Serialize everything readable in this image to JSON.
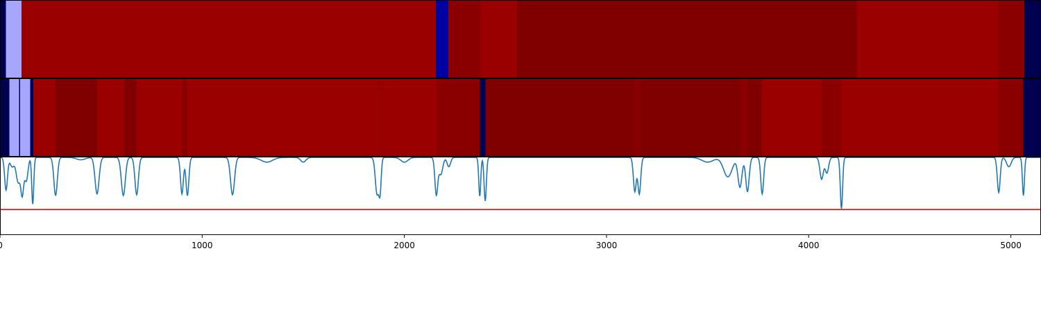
{
  "chart_data": [
    {
      "type": "heatmap",
      "xlim": [
        0,
        5149
      ],
      "segments": [
        {
          "start": 0,
          "end": 30,
          "color": "#000050"
        },
        {
          "start": 30,
          "end": 107,
          "color": "#a6a6ff"
        },
        {
          "start": 107,
          "end": 2156,
          "color": "#9a0000"
        },
        {
          "start": 2156,
          "end": 2218,
          "color": "#0000a0"
        },
        {
          "start": 2218,
          "end": 2375,
          "color": "#8a0000"
        },
        {
          "start": 2375,
          "end": 2557,
          "color": "#9a0000"
        },
        {
          "start": 2557,
          "end": 4237,
          "color": "#800000"
        },
        {
          "start": 4237,
          "end": 4938,
          "color": "#9a0000"
        },
        {
          "start": 4938,
          "end": 5066,
          "color": "#8a0000"
        },
        {
          "start": 5066,
          "end": 5149,
          "color": "#000050"
        }
      ]
    },
    {
      "type": "heatmap",
      "xlim": [
        0,
        5149
      ],
      "segments": [
        {
          "start": 0,
          "end": 47,
          "color": "#000050"
        },
        {
          "start": 47,
          "end": 95,
          "color": "#a6a6ff"
        },
        {
          "start": 95,
          "end": 100,
          "color": "#000050"
        },
        {
          "start": 100,
          "end": 150,
          "color": "#a6a6ff"
        },
        {
          "start": 150,
          "end": 165,
          "color": "#000050"
        },
        {
          "start": 165,
          "end": 275,
          "color": "#9a0000"
        },
        {
          "start": 275,
          "end": 481,
          "color": "#800000"
        },
        {
          "start": 481,
          "end": 614,
          "color": "#9a0000"
        },
        {
          "start": 614,
          "end": 676,
          "color": "#800000"
        },
        {
          "start": 676,
          "end": 900,
          "color": "#9a0000"
        },
        {
          "start": 900,
          "end": 927,
          "color": "#8a0000"
        },
        {
          "start": 927,
          "end": 1873,
          "color": "#9a0000"
        },
        {
          "start": 1873,
          "end": 1877,
          "color": "#8a0000"
        },
        {
          "start": 1877,
          "end": 2160,
          "color": "#9a0000"
        },
        {
          "start": 2160,
          "end": 2374,
          "color": "#8a0000"
        },
        {
          "start": 2374,
          "end": 2402,
          "color": "#000050"
        },
        {
          "start": 2402,
          "end": 3140,
          "color": "#800000"
        },
        {
          "start": 3140,
          "end": 3160,
          "color": "#8a0000"
        },
        {
          "start": 3160,
          "end": 3659,
          "color": "#800000"
        },
        {
          "start": 3659,
          "end": 3697,
          "color": "#8a0000"
        },
        {
          "start": 3697,
          "end": 3769,
          "color": "#800000"
        },
        {
          "start": 3769,
          "end": 4064,
          "color": "#9a0000"
        },
        {
          "start": 4064,
          "end": 4162,
          "color": "#8a0000"
        },
        {
          "start": 4162,
          "end": 4938,
          "color": "#9a0000"
        },
        {
          "start": 4938,
          "end": 5062,
          "color": "#8a0000"
        },
        {
          "start": 5062,
          "end": 5149,
          "color": "#000050"
        }
      ]
    },
    {
      "type": "line",
      "xlim": [
        0,
        5149
      ],
      "ylim": [
        -1.0,
        0.0
      ],
      "xticks": [
        0,
        1000,
        2000,
        3000,
        4000,
        5000
      ],
      "xtick_labels": [
        "0",
        "1000",
        "2000",
        "3000",
        "4000",
        "5000"
      ],
      "series": [
        {
          "color": "#1f77b4",
          "baseline": -0.01,
          "dips": [
            {
              "x": 30,
              "depth": 0.42,
              "width": 10
            },
            {
              "x": 60,
              "depth": 0.12,
              "width": 14
            },
            {
              "x": 90,
              "depth": 0.32,
              "width": 14
            },
            {
              "x": 110,
              "depth": 0.45,
              "width": 10
            },
            {
              "x": 130,
              "depth": 0.3,
              "width": 12
            },
            {
              "x": 162,
              "depth": 0.6,
              "width": 7
            },
            {
              "x": 275,
              "depth": 0.49,
              "width": 12
            },
            {
              "x": 400,
              "depth": 0.03,
              "width": 30
            },
            {
              "x": 480,
              "depth": 0.47,
              "width": 14
            },
            {
              "x": 610,
              "depth": 0.49,
              "width": 14
            },
            {
              "x": 676,
              "depth": 0.48,
              "width": 12
            },
            {
              "x": 900,
              "depth": 0.47,
              "width": 10
            },
            {
              "x": 927,
              "depth": 0.49,
              "width": 10
            },
            {
              "x": 1150,
              "depth": 0.48,
              "width": 14
            },
            {
              "x": 1320,
              "depth": 0.06,
              "width": 40
            },
            {
              "x": 1500,
              "depth": 0.06,
              "width": 18
            },
            {
              "x": 1865,
              "depth": 0.47,
              "width": 12
            },
            {
              "x": 1880,
              "depth": 0.4,
              "width": 8
            },
            {
              "x": 2000,
              "depth": 0.06,
              "width": 25
            },
            {
              "x": 2158,
              "depth": 0.47,
              "width": 10
            },
            {
              "x": 2180,
              "depth": 0.22,
              "width": 14
            },
            {
              "x": 2220,
              "depth": 0.12,
              "width": 12
            },
            {
              "x": 2373,
              "depth": 0.5,
              "width": 7
            },
            {
              "x": 2400,
              "depth": 0.56,
              "width": 8
            },
            {
              "x": 3140,
              "depth": 0.44,
              "width": 10
            },
            {
              "x": 3162,
              "depth": 0.47,
              "width": 10
            },
            {
              "x": 3500,
              "depth": 0.06,
              "width": 40
            },
            {
              "x": 3600,
              "depth": 0.25,
              "width": 30
            },
            {
              "x": 3660,
              "depth": 0.38,
              "width": 14
            },
            {
              "x": 3697,
              "depth": 0.44,
              "width": 12
            },
            {
              "x": 3770,
              "depth": 0.47,
              "width": 10
            },
            {
              "x": 4064,
              "depth": 0.28,
              "width": 12
            },
            {
              "x": 4090,
              "depth": 0.2,
              "width": 12
            },
            {
              "x": 4162,
              "depth": 0.66,
              "width": 8
            },
            {
              "x": 4940,
              "depth": 0.45,
              "width": 10
            },
            {
              "x": 4990,
              "depth": 0.12,
              "width": 16
            },
            {
              "x": 5062,
              "depth": 0.49,
              "width": 7
            }
          ]
        },
        {
          "color": "#ff0000",
          "kind": "hline",
          "y": -0.68
        }
      ]
    }
  ]
}
